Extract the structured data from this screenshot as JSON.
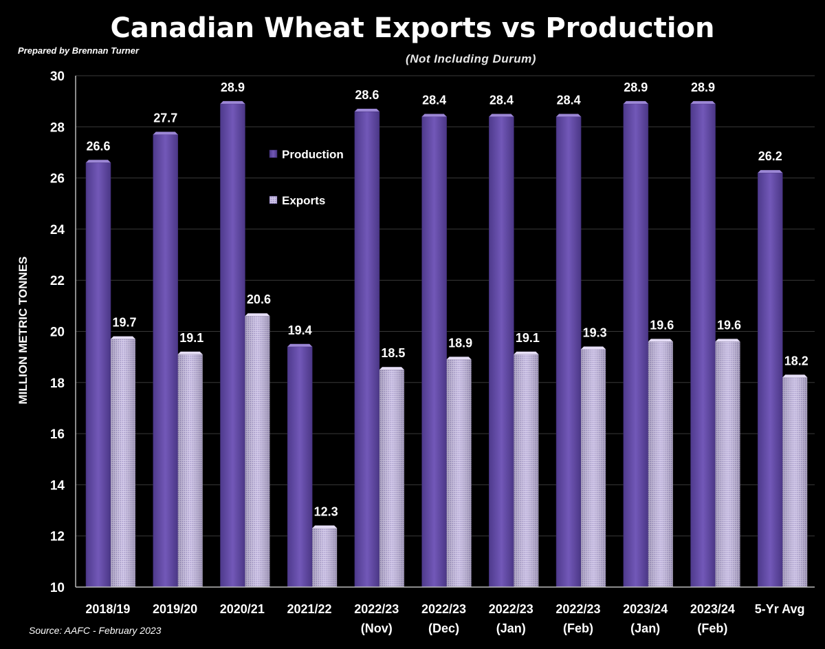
{
  "header": {
    "title": "Canadian Wheat Exports vs Production",
    "subtitle": "(Not Including Durum)",
    "prepared_by": "Prepared by Brennan Turner",
    "source": "Source: AAFC -  February 2023"
  },
  "colors": {
    "production": "#6a50ae",
    "exports": "#cbc0e6",
    "background": "#000000",
    "grid": "#3a3a3a"
  },
  "chart_data": {
    "type": "bar",
    "title": "Canadian Wheat Exports vs Production",
    "subtitle": "(Not Including Durum)",
    "ylabel": "MILLION METRIC TONNES",
    "xlabel": "",
    "ylim": [
      10,
      30
    ],
    "yticks": [
      10,
      12,
      14,
      16,
      18,
      20,
      22,
      24,
      26,
      28,
      30
    ],
    "grid": true,
    "legend_position": "top-center",
    "categories": [
      [
        "2018/19"
      ],
      [
        "2019/20"
      ],
      [
        "2020/21"
      ],
      [
        "2021/22"
      ],
      [
        "2022/23",
        "(Nov)"
      ],
      [
        "2022/23",
        "(Dec)"
      ],
      [
        "2022/23",
        "(Jan)"
      ],
      [
        "2022/23",
        "(Feb)"
      ],
      [
        "2023/24",
        "(Jan)"
      ],
      [
        "2023/24",
        "(Feb)"
      ],
      [
        "5-Yr Avg"
      ]
    ],
    "series": [
      {
        "name": "Production",
        "values": [
          26.6,
          27.7,
          28.9,
          19.4,
          28.6,
          28.4,
          28.4,
          28.4,
          28.9,
          28.9,
          26.2
        ]
      },
      {
        "name": "Exports",
        "values": [
          19.7,
          19.1,
          20.6,
          12.3,
          18.5,
          18.9,
          19.1,
          19.3,
          19.6,
          19.6,
          18.2
        ]
      }
    ]
  }
}
